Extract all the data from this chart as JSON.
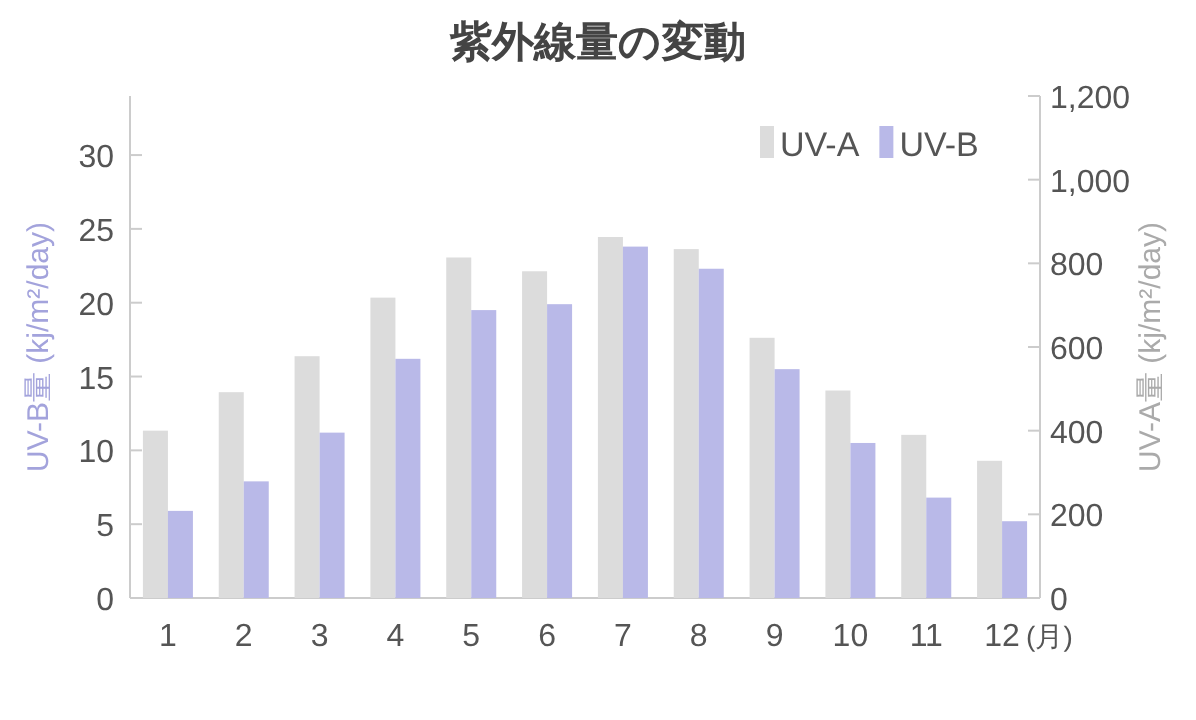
{
  "chart_data": {
    "type": "bar",
    "title": "紫外線量の変動",
    "categories": [
      "1",
      "2",
      "3",
      "4",
      "5",
      "6",
      "7",
      "8",
      "9",
      "10",
      "11",
      "12"
    ],
    "xlabel": "(月)",
    "ylabel": "UV-B量 (kj/m²/day)",
    "y2label": "UV-A量 (kj/m²/day)",
    "ylim": [
      0,
      34
    ],
    "yticks": [
      0,
      5,
      10,
      15,
      20,
      25,
      30
    ],
    "y2lim": [
      0,
      1200
    ],
    "y2ticks": [
      0,
      {
        "value": 200,
        "label": "200"
      },
      {
        "value": 400,
        "label": "400"
      },
      {
        "value": 600,
        "label": "600"
      },
      {
        "value": 800,
        "label": "800"
      },
      {
        "value": 1000,
        "label": "1,000"
      },
      {
        "value": 1200,
        "label": "1,200"
      }
    ],
    "legend": "top right",
    "grid": false,
    "series": [
      {
        "name": "UV-A",
        "color": "#dcdcdc",
        "axis": "y2",
        "values": [
          400,
          492,
          578,
          718,
          814,
          781,
          863,
          834,
          622,
          496,
          390,
          328
        ]
      },
      {
        "name": "UV-B",
        "color": "#b9b9e8",
        "axis": "y",
        "values": [
          5.9,
          7.9,
          11.2,
          16.2,
          19.5,
          19.9,
          23.8,
          22.3,
          15.5,
          10.5,
          6.8,
          5.2
        ]
      }
    ]
  }
}
